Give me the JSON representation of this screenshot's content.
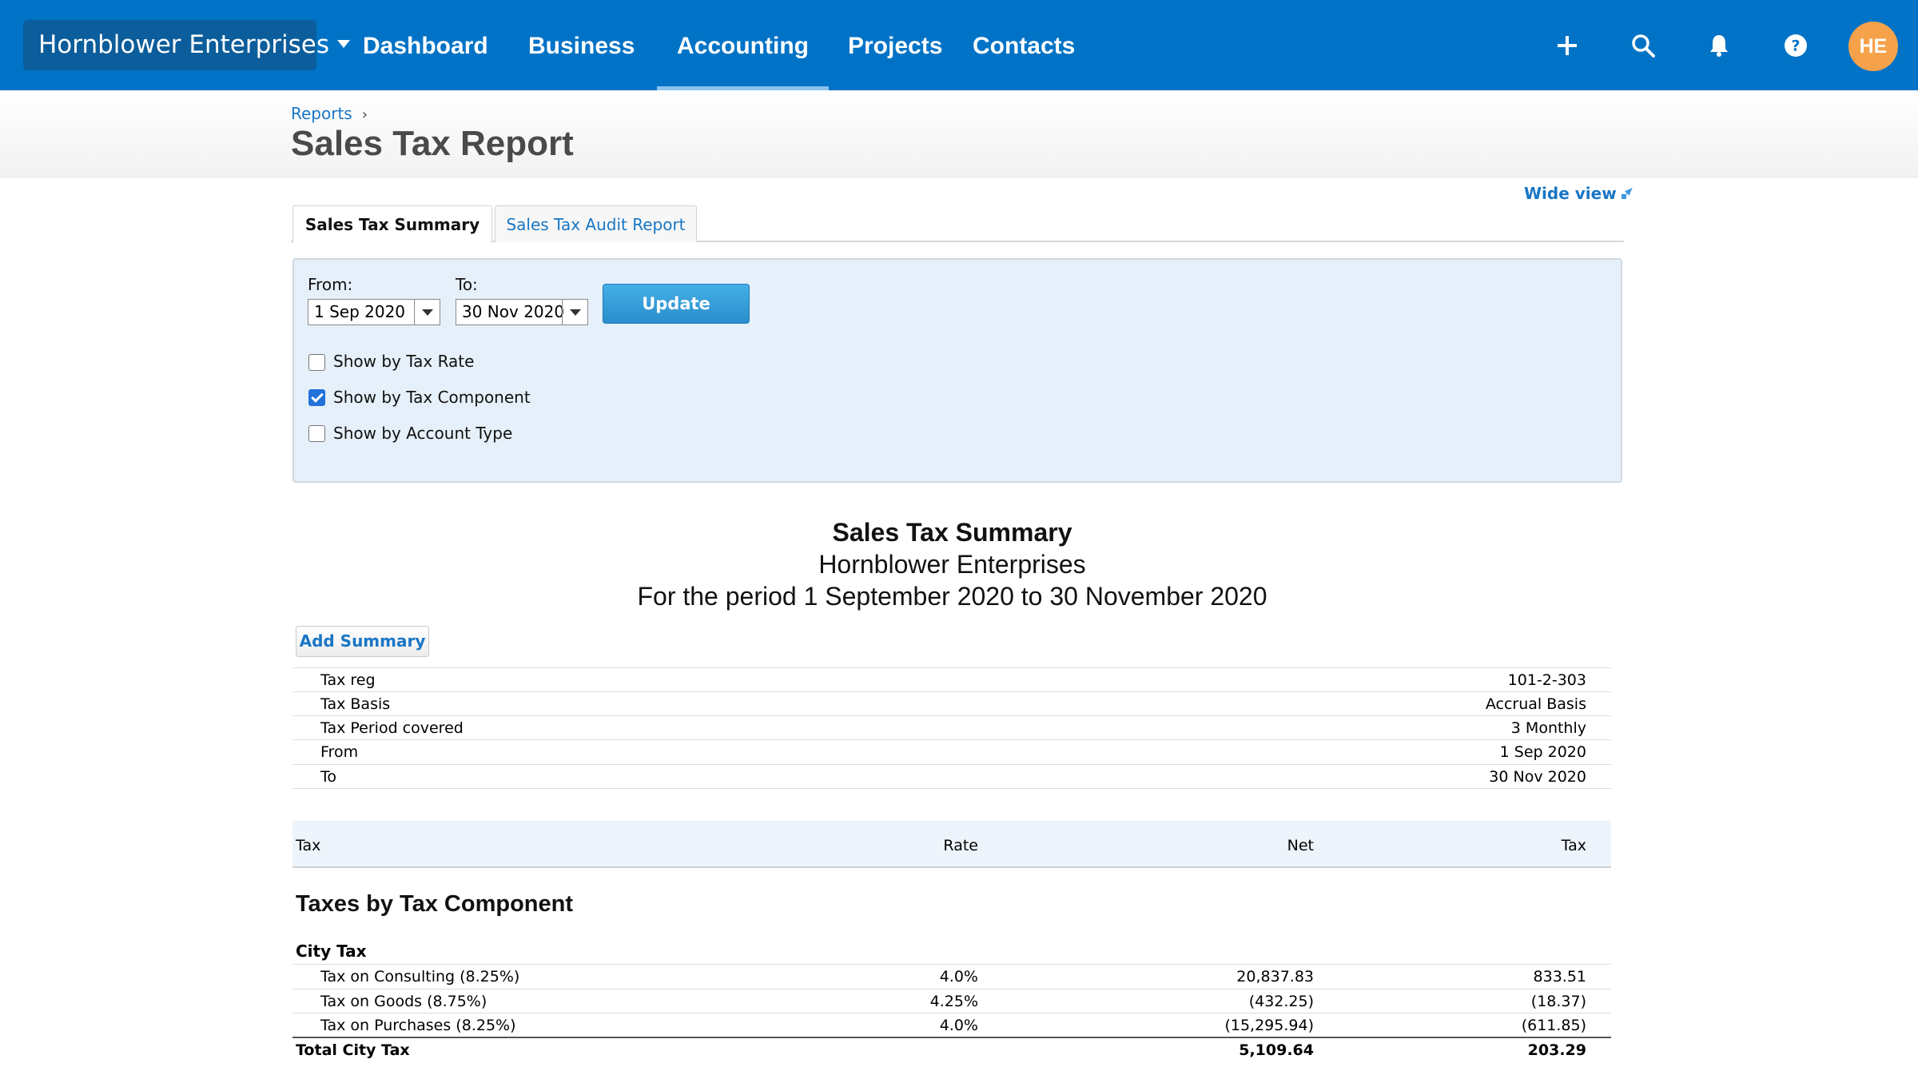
{
  "nav": {
    "org": "Hornblower Enterprises",
    "items": [
      "Dashboard",
      "Business",
      "Accounting",
      "Projects",
      "Contacts"
    ],
    "avatar_initials": "HE",
    "icons": [
      "plus-icon",
      "search-icon",
      "bell-icon",
      "help-icon"
    ]
  },
  "header": {
    "breadcrumb": "Reports",
    "title": "Sales Tax Report",
    "wide_view": "Wide view"
  },
  "tabs": [
    "Sales Tax Summary",
    "Sales Tax Audit Report"
  ],
  "filter": {
    "from_label": "From:",
    "from_value": "1 Sep 2020",
    "to_label": "To:",
    "to_value": "30 Nov 2020",
    "update_label": "Update",
    "options": [
      {
        "label": "Show by Tax Rate",
        "checked": false
      },
      {
        "label": "Show by Tax Component",
        "checked": true
      },
      {
        "label": "Show by Account Type",
        "checked": false
      }
    ]
  },
  "report": {
    "title": "Sales Tax Summary",
    "company": "Hornblower Enterprises",
    "period": "For the period 1 September 2020 to 30 November 2020",
    "add_summary": "Add Summary",
    "info": [
      {
        "k": "Tax reg",
        "v": "101-2-303"
      },
      {
        "k": "Tax Basis",
        "v": "Accrual Basis"
      },
      {
        "k": "Tax Period covered",
        "v": "3 Monthly"
      },
      {
        "k": "From",
        "v": "1 Sep 2020"
      },
      {
        "k": "To",
        "v": "30 Nov 2020"
      }
    ],
    "columns": [
      "Tax",
      "Rate",
      "Net",
      "Tax"
    ],
    "section": "Taxes by Tax Component",
    "group": "City Tax",
    "rows": [
      [
        "Tax on Consulting (8.25%)",
        "4.0%",
        "20,837.83",
        "833.51"
      ],
      [
        "Tax on Goods (8.75%)",
        "4.25%",
        "(432.25)",
        "(18.37)"
      ],
      [
        "Tax on Purchases (8.25%)",
        "4.0%",
        "(15,295.94)",
        "(611.85)"
      ]
    ],
    "total": [
      "Total City Tax",
      "",
      "5,109.64",
      "203.29"
    ]
  },
  "colors": {
    "nav_bg": "#0073c6",
    "org_bg": "#0b5d9b",
    "avatar_bg": "#f6a24b",
    "link": "#1976c5",
    "panel_bg": "#e6f0fa"
  }
}
